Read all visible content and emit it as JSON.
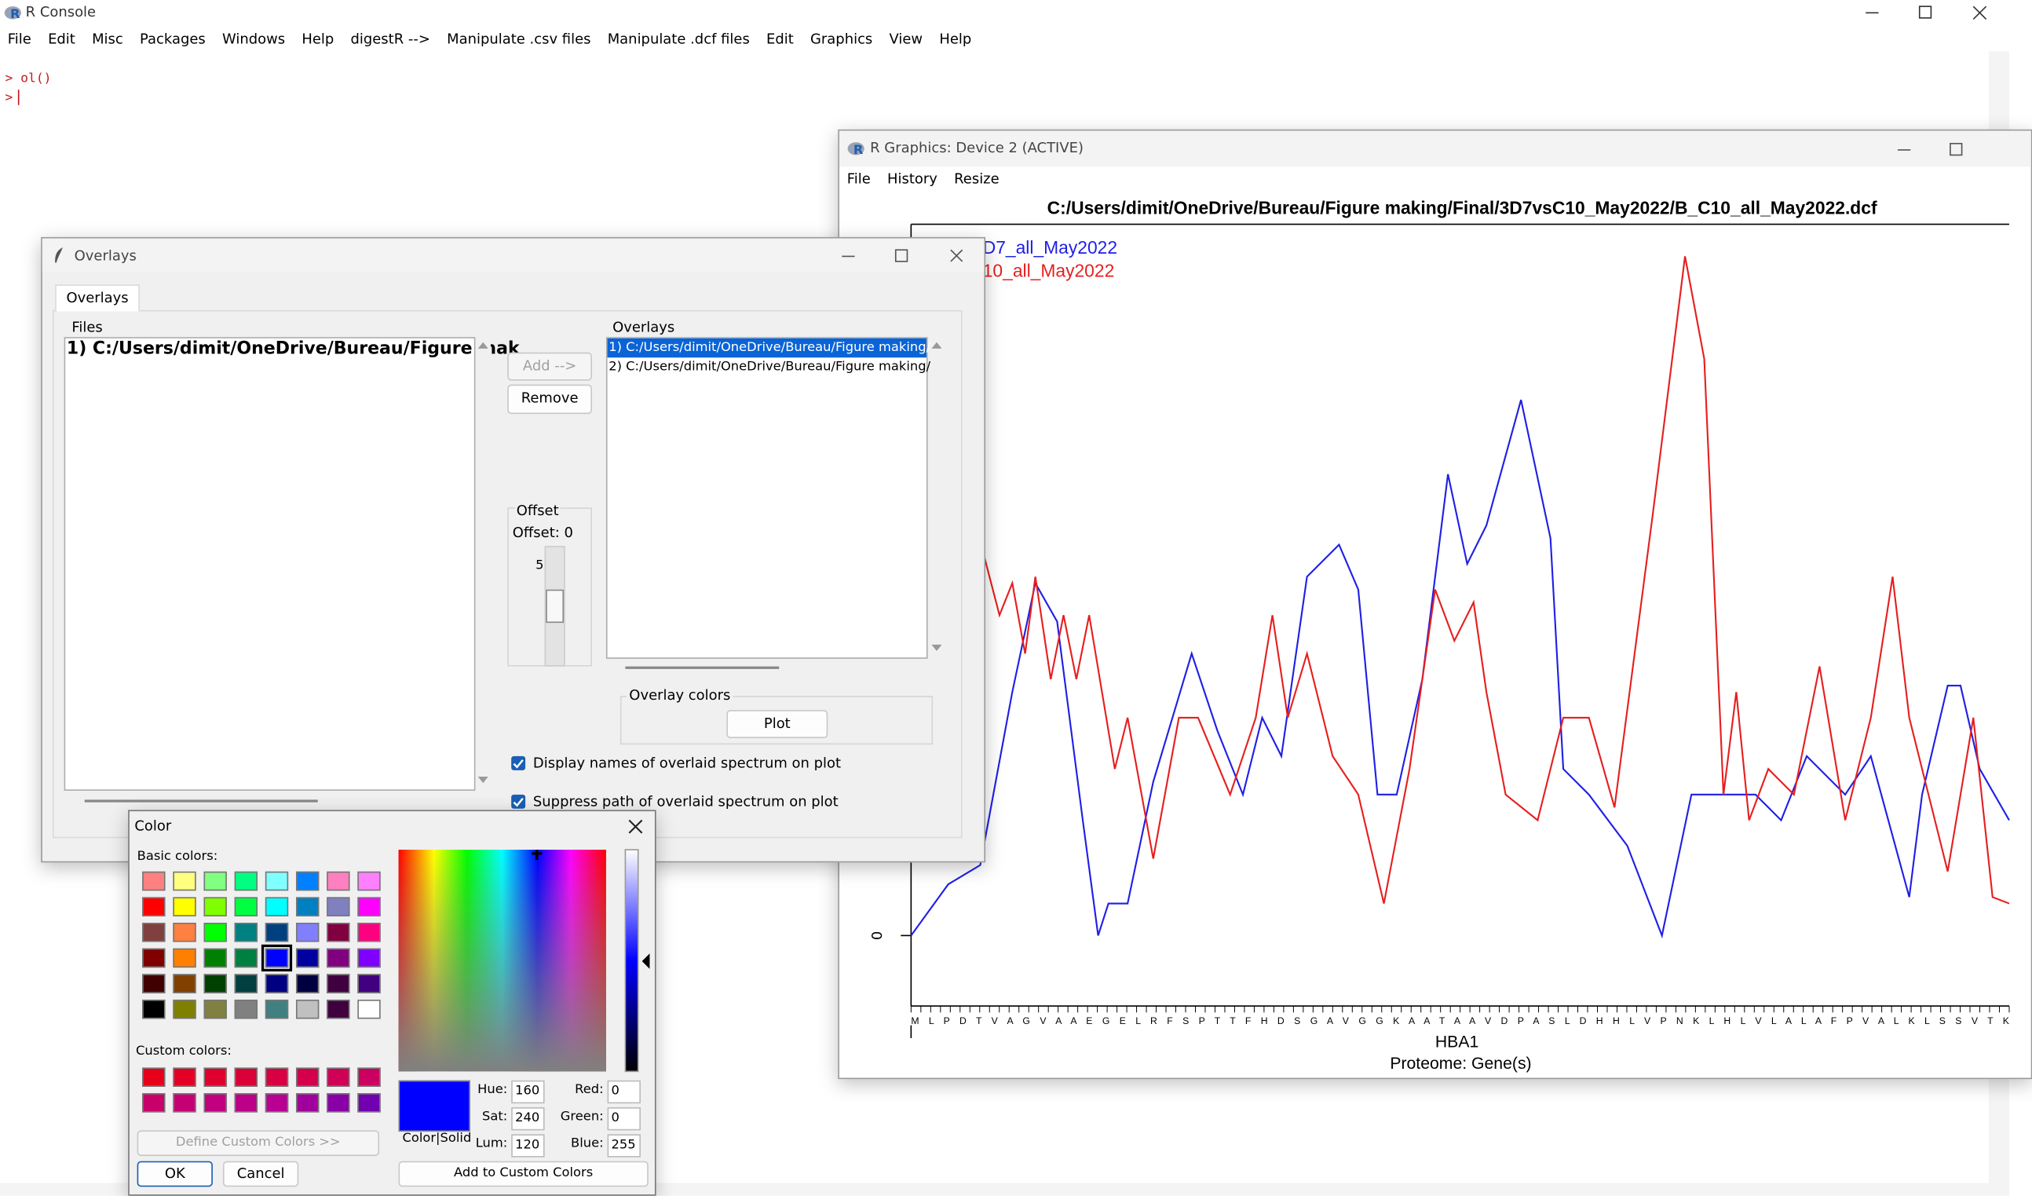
{
  "console": {
    "title": "R Console",
    "menu": [
      "File",
      "Edit",
      "Misc",
      "Packages",
      "Windows",
      "Help",
      "digestR -->",
      "Manipulate .csv files",
      "Manipulate .dcf files",
      "Edit",
      "Graphics",
      "View",
      "Help"
    ],
    "lines": [
      "> ol()",
      ">"
    ]
  },
  "graphics": {
    "title": "R Graphics: Device 2 (ACTIVE)",
    "menu": [
      "File",
      "History",
      "Resize"
    ],
    "chart_data": {
      "type": "line",
      "title": "C:/Users/dimit/OneDrive/Bureau/Figure making/Final/3D7vsC10_May2022/B_C10_all_May2022.dcf",
      "x_label": "HBA1",
      "subtitle": "Proteome: Gene(s)",
      "sequence": "M L P D T V A  G V A A E G E L R F S P T T F H D S G A V G G K A A T A A V D P A S L D H H L V P N K L H L V L A L A F P V A L K L S S V T K",
      "xlim": [
        0,
        857
      ],
      "ylim": [
        0,
        540
      ],
      "yticks": [
        0
      ],
      "series": [
        {
          "name": "D7_all_May2022",
          "color": "#1f1fe6",
          "x": [
            0,
            29,
            54,
            79,
            97,
            114,
            134,
            146,
            154,
            169,
            189,
            219,
            239,
            259,
            274,
            289,
            309,
            334,
            349,
            364,
            379,
            399,
            419,
            434,
            449,
            476,
            499,
            509,
            529,
            559,
            586,
            609,
            634,
            659,
            679,
            699,
            729,
            749,
            779,
            789,
            809,
            819,
            834,
            857
          ],
          "values": [
            0,
            40,
            55,
            190,
            275,
            245,
            90,
            0,
            25,
            25,
            120,
            220,
            160,
            110,
            170,
            140,
            280,
            305,
            270,
            110,
            110,
            200,
            360,
            290,
            320,
            418,
            310,
            130,
            110,
            70,
            0,
            110,
            110,
            110,
            90,
            140,
            110,
            140,
            30,
            110,
            195,
            195,
            130,
            90
          ]
        },
        {
          "name": "10_all_May2022",
          "color": "#e61f1f",
          "x": [
            56,
            69,
            79,
            89,
            97,
            109,
            119,
            129,
            139,
            159,
            169,
            189,
            209,
            224,
            249,
            269,
            282,
            294,
            309,
            329,
            349,
            369,
            389,
            409,
            424,
            439,
            449,
            464,
            489,
            509,
            529,
            549,
            579,
            604,
            619,
            634,
            644,
            654,
            669,
            689,
            709,
            729,
            749,
            766,
            779,
            809,
            829,
            844,
            857
          ],
          "values": [
            300,
            250,
            275,
            220,
            280,
            200,
            250,
            200,
            250,
            130,
            170,
            60,
            170,
            170,
            110,
            170,
            250,
            170,
            220,
            140,
            110,
            25,
            130,
            270,
            230,
            260,
            190,
            110,
            90,
            170,
            170,
            100,
            330,
            530,
            450,
            110,
            190,
            90,
            130,
            110,
            210,
            90,
            170,
            280,
            170,
            50,
            170,
            30,
            25
          ]
        }
      ]
    }
  },
  "overlays": {
    "title": "Overlays",
    "tab": "Overlays",
    "files_label": "Files",
    "files": [
      "1) C:/Users/dimit/OneDrive/Bureau/Figure mak"
    ],
    "add_button": "Add -->",
    "remove_button": "Remove",
    "offset_group": "Offset",
    "offset_text": "Offset: 0",
    "offset_scale": "5",
    "overlays_label": "Overlays",
    "overlays": [
      "1) C:/Users/dimit/OneDrive/Bureau/Figure making/",
      "2) C:/Users/dimit/OneDrive/Bureau/Figure making/"
    ],
    "overlay_colors_label": "Overlay colors",
    "plot_button": "Plot",
    "checkboxes": [
      "Display names of overlaid spectrum on plot",
      "Suppress path of overlaid spectrum on plot"
    ]
  },
  "color_dialog": {
    "title": "Color",
    "basic_label": "Basic colors:",
    "basic_colors": [
      "#FF8080",
      "#FFFF80",
      "#80FF80",
      "#00FF80",
      "#80FFFF",
      "#0080FF",
      "#FF80C0",
      "#FF80FF",
      "#FF0000",
      "#FFFF00",
      "#80FF00",
      "#00FF40",
      "#00FFFF",
      "#0080C0",
      "#8080C0",
      "#FF00FF",
      "#804040",
      "#FF8040",
      "#00FF00",
      "#008080",
      "#004080",
      "#8080FF",
      "#800040",
      "#FF0080",
      "#800000",
      "#FF8000",
      "#008000",
      "#008040",
      "#0000FF",
      "#0000A0",
      "#800080",
      "#8000FF",
      "#400000",
      "#804000",
      "#004000",
      "#004040",
      "#000080",
      "#000040",
      "#400040",
      "#400080",
      "#000000",
      "#808000",
      "#808040",
      "#808080",
      "#408080",
      "#C0C0C0",
      "#400040",
      "#FFFFFF"
    ],
    "selected": 28,
    "custom_label": "Custom colors:",
    "custom_colors": [
      "#E8001A",
      "#E40024",
      "#E0002E",
      "#DC0038",
      "#D80042",
      "#D4004C",
      "#D00056",
      "#CC0060",
      "#C8006A",
      "#C40074",
      "#C0007E",
      "#BC0088",
      "#B80092",
      "#A0009C",
      "#8800A6",
      "#7000B0"
    ],
    "define_button": "Define Custom Colors >>",
    "ok_button": "OK",
    "cancel_button": "Cancel",
    "preview_label": "Color|Solid",
    "preview_color": "#0000FF",
    "fields": [
      {
        "label": "Hue:",
        "value": "160"
      },
      {
        "label": "Sat:",
        "value": "240"
      },
      {
        "label": "Lum:",
        "value": "120"
      },
      {
        "label": "Red:",
        "value": "0"
      },
      {
        "label": "Green:",
        "value": "0"
      },
      {
        "label": "Blue:",
        "value": "255"
      }
    ],
    "add_custom_button": "Add to Custom Colors"
  }
}
